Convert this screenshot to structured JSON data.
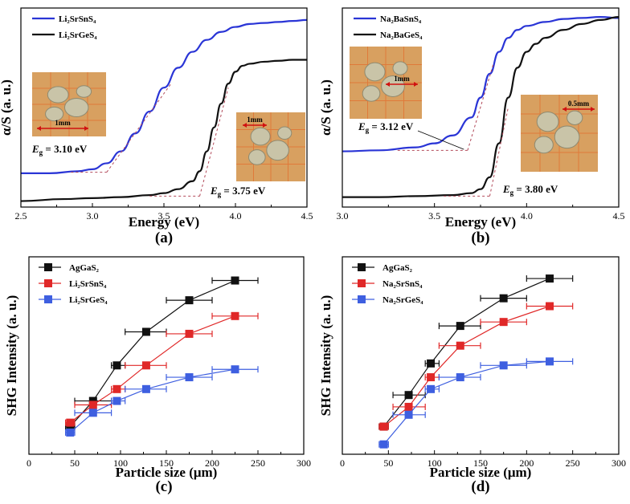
{
  "colors": {
    "blue": "#2a35d6",
    "black": "#111111",
    "red": "#e02828",
    "square_blue": "#3e5fe0",
    "dash": "#b24a5a",
    "photo_bg": "#d8a060"
  },
  "chart_data": [
    {
      "panel": "(a)",
      "type": "line",
      "xlabel": "Energy (eV)",
      "ylabel": "α/S (a. u.)",
      "xlim": [
        2.5,
        4.5
      ],
      "ylim": [
        0,
        1
      ],
      "xticks": [
        "2.5",
        "3.0",
        "3.5",
        "4.0",
        "4.5"
      ],
      "legend_position": "top-left",
      "series": [
        {
          "name": "Li₂SrSnS₄",
          "color": "#2a35d6",
          "x": [
            2.5,
            2.7,
            2.9,
            3.0,
            3.1,
            3.2,
            3.3,
            3.4,
            3.5,
            3.6,
            3.7,
            3.8,
            3.9,
            4.0,
            4.1,
            4.2,
            4.3,
            4.4,
            4.5
          ],
          "y": [
            0.17,
            0.17,
            0.18,
            0.19,
            0.22,
            0.28,
            0.37,
            0.48,
            0.6,
            0.7,
            0.78,
            0.84,
            0.88,
            0.905,
            0.92,
            0.925,
            0.93,
            0.935,
            0.94
          ]
        },
        {
          "name": "Li₂SrGeS₄",
          "color": "#111111",
          "x": [
            2.5,
            2.8,
            3.0,
            3.2,
            3.4,
            3.5,
            3.6,
            3.7,
            3.75,
            3.8,
            3.85,
            3.9,
            3.95,
            4.0,
            4.05,
            4.1,
            4.2,
            4.3,
            4.4,
            4.5
          ],
          "y": [
            0.03,
            0.04,
            0.045,
            0.05,
            0.06,
            0.07,
            0.09,
            0.13,
            0.18,
            0.28,
            0.4,
            0.52,
            0.62,
            0.68,
            0.71,
            0.72,
            0.73,
            0.735,
            0.74,
            0.74
          ]
        }
      ],
      "annotations": [
        {
          "text": "E",
          "sub": "g",
          "value": "= 3.10 eV"
        },
        {
          "text": "E",
          "sub": "g",
          "value": "= 3.75 eV"
        }
      ],
      "inset_label": "1mm",
      "inset_label_2": "1mm"
    },
    {
      "panel": "(b)",
      "type": "line",
      "xlabel": "Energy (eV)",
      "ylabel": "α/S (a. u.)",
      "xlim": [
        3.0,
        4.5
      ],
      "ylim": [
        0,
        1
      ],
      "xticks": [
        "3.0",
        "3.5",
        "4.0",
        "4.5"
      ],
      "legend_position": "top-left",
      "series": [
        {
          "name": "Na₂BaSnS₄",
          "color": "#2a35d6",
          "x": [
            3.0,
            3.2,
            3.4,
            3.5,
            3.6,
            3.7,
            3.75,
            3.8,
            3.85,
            3.9,
            3.95,
            4.0,
            4.1,
            4.2,
            4.3,
            4.4,
            4.5
          ],
          "y": [
            0.28,
            0.285,
            0.3,
            0.32,
            0.36,
            0.45,
            0.55,
            0.67,
            0.78,
            0.85,
            0.89,
            0.91,
            0.93,
            0.945,
            0.95,
            0.955,
            0.95
          ]
        },
        {
          "name": "Na₂BaGeS₄",
          "color": "#111111",
          "x": [
            3.0,
            3.2,
            3.4,
            3.6,
            3.7,
            3.75,
            3.8,
            3.85,
            3.9,
            3.95,
            4.0,
            4.05,
            4.1,
            4.2,
            4.3,
            4.4,
            4.5
          ],
          "y": [
            0.05,
            0.05,
            0.055,
            0.06,
            0.07,
            0.09,
            0.15,
            0.32,
            0.55,
            0.7,
            0.78,
            0.82,
            0.85,
            0.89,
            0.92,
            0.94,
            0.955
          ]
        }
      ],
      "annotations": [
        {
          "text": "E",
          "sub": "g",
          "value": "= 3.12 eV"
        },
        {
          "text": "E",
          "sub": "g",
          "value": "= 3.80 eV"
        }
      ],
      "inset_label": "1mm",
      "inset_label_2": "0.5mm"
    },
    {
      "panel": "(c)",
      "type": "scatter",
      "xlabel": "Particle size (μm)",
      "ylabel": "SHG Intensity (a. u.)",
      "xlim": [
        0,
        300
      ],
      "ylim": [
        0,
        1
      ],
      "xticks": [
        "0",
        "50",
        "100",
        "150",
        "200",
        "250",
        "300"
      ],
      "legend_position": "top-left",
      "x": [
        45,
        70,
        96,
        128,
        175,
        225
      ],
      "xerr": [
        [
          40,
          50
        ],
        [
          50,
          90
        ],
        [
          90,
          105
        ],
        [
          105,
          150
        ],
        [
          150,
          200
        ],
        [
          200,
          250
        ]
      ],
      "series": [
        {
          "name": "AgGaS₂",
          "color": "#111111",
          "values": [
            0.14,
            0.27,
            0.45,
            0.62,
            0.78,
            0.88
          ]
        },
        {
          "name": "Li₂SrSnS₄",
          "color": "#e02828",
          "values": [
            0.16,
            0.25,
            0.33,
            0.45,
            0.61,
            0.7
          ]
        },
        {
          "name": "Li₂SrGeS₄",
          "color": "#3e5fe0",
          "values": [
            0.11,
            0.21,
            0.27,
            0.33,
            0.39,
            0.43
          ]
        }
      ]
    },
    {
      "panel": "(d)",
      "type": "scatter",
      "xlabel": "Particle size (μm)",
      "ylabel": "SHG Intensity (a. u.)",
      "xlim": [
        0,
        300
      ],
      "ylim": [
        0,
        1
      ],
      "xticks": [
        "0",
        "50",
        "100",
        "150",
        "200",
        "250",
        "300"
      ],
      "legend_position": "top-left",
      "x": [
        45,
        72,
        96,
        128,
        175,
        225
      ],
      "xerr": [
        [
          40,
          50
        ],
        [
          55,
          90
        ],
        [
          90,
          105
        ],
        [
          105,
          150
        ],
        [
          150,
          200
        ],
        [
          200,
          250
        ]
      ],
      "series": [
        {
          "name": "AgGaS₂",
          "color": "#111111",
          "values": [
            0.14,
            0.3,
            0.46,
            0.65,
            0.79,
            0.89
          ]
        },
        {
          "name": "Na₂SrSnS₄",
          "color": "#e02828",
          "values": [
            0.14,
            0.24,
            0.39,
            0.55,
            0.67,
            0.75
          ]
        },
        {
          "name": "Na₂SrGeS₄",
          "color": "#3e5fe0",
          "values": [
            0.05,
            0.2,
            0.33,
            0.39,
            0.45,
            0.47
          ]
        }
      ]
    }
  ]
}
